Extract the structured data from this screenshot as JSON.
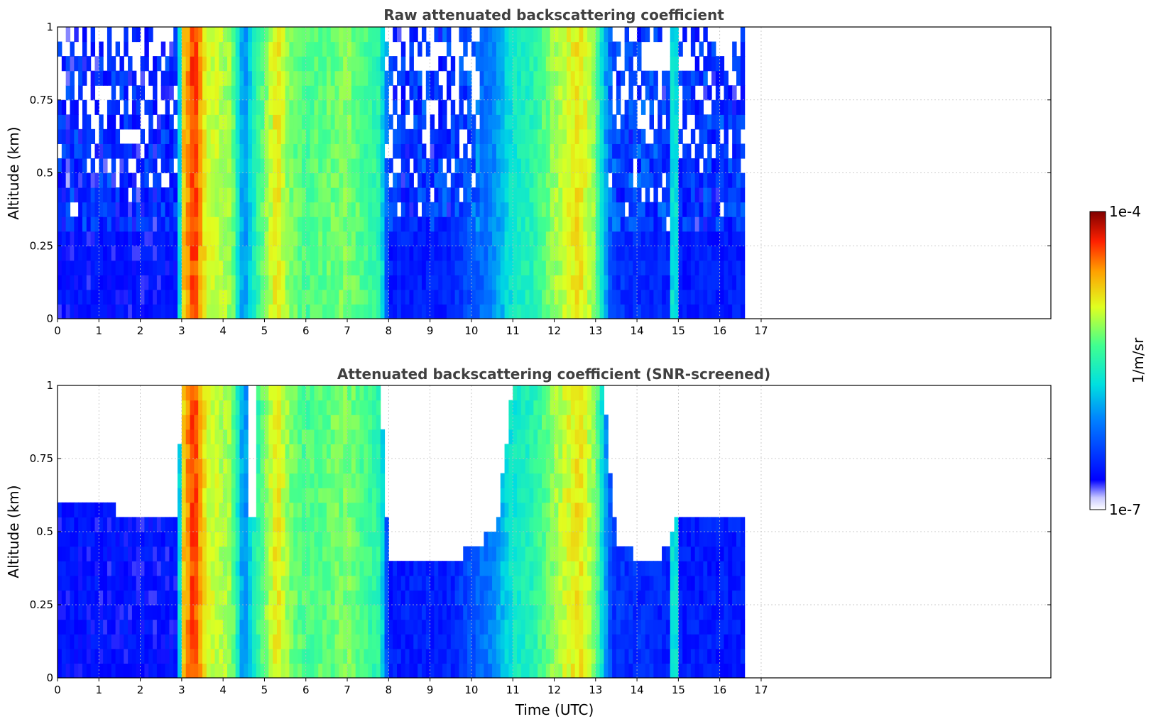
{
  "chart_data": [
    {
      "type": "heatmap",
      "title": "Raw attenuated backscattering coefficient",
      "xlabel": "",
      "ylabel": "Altitude (km)",
      "xlim": [
        0,
        24
      ],
      "ylim": [
        0,
        1
      ],
      "x_ticks": [
        "0",
        "1",
        "2",
        "3",
        "4",
        "5",
        "6",
        "7",
        "8",
        "9",
        "10",
        "11",
        "12",
        "13",
        "14",
        "15",
        "16",
        "17"
      ],
      "y_ticks": [
        "0",
        "0.25",
        "0.5",
        "0.75",
        "1"
      ],
      "grid": true,
      "data_x_range": [
        0,
        16.6
      ],
      "screened": false,
      "time_profile": [
        {
          "t": 0,
          "v": 0.12
        },
        {
          "t": 2.9,
          "v": 0.12
        },
        {
          "t": 3.0,
          "v": 0.72
        },
        {
          "t": 3.3,
          "v": 0.9
        },
        {
          "t": 3.6,
          "v": 0.68
        },
        {
          "t": 4.2,
          "v": 0.62
        },
        {
          "t": 4.5,
          "v": 0.3
        },
        {
          "t": 4.8,
          "v": 0.5
        },
        {
          "t": 5.3,
          "v": 0.72
        },
        {
          "t": 5.6,
          "v": 0.6
        },
        {
          "t": 6.0,
          "v": 0.55
        },
        {
          "t": 7.0,
          "v": 0.6
        },
        {
          "t": 7.8,
          "v": 0.5
        },
        {
          "t": 8.0,
          "v": 0.14
        },
        {
          "t": 9.5,
          "v": 0.15
        },
        {
          "t": 10.5,
          "v": 0.3
        },
        {
          "t": 11.0,
          "v": 0.45
        },
        {
          "t": 11.5,
          "v": 0.5
        },
        {
          "t": 12.0,
          "v": 0.62
        },
        {
          "t": 12.6,
          "v": 0.72
        },
        {
          "t": 13.0,
          "v": 0.6
        },
        {
          "t": 13.4,
          "v": 0.18
        },
        {
          "t": 14.8,
          "v": 0.15
        },
        {
          "t": 14.9,
          "v": 0.7
        },
        {
          "t": 15.0,
          "v": 0.14
        },
        {
          "t": 16.6,
          "v": 0.14
        }
      ]
    },
    {
      "type": "heatmap",
      "title": "Attenuated backscattering coefficient (SNR-screened)",
      "xlabel": "Time (UTC)",
      "ylabel": "Altitude (km)",
      "xlim": [
        0,
        24
      ],
      "ylim": [
        0,
        1
      ],
      "x_ticks": [
        "0",
        "1",
        "2",
        "3",
        "4",
        "5",
        "6",
        "7",
        "8",
        "9",
        "10",
        "11",
        "12",
        "13",
        "14",
        "15",
        "16",
        "17"
      ],
      "y_ticks": [
        "0",
        "0.25",
        "0.5",
        "0.75",
        "1"
      ],
      "grid": true,
      "data_x_range": [
        0,
        16.6
      ],
      "screened": true,
      "screen_top_km": [
        {
          "t": 0,
          "h": 0.58
        },
        {
          "t": 2.9,
          "h": 0.57
        },
        {
          "t": 3.0,
          "h": 1.0
        },
        {
          "t": 4.6,
          "h": 1.0
        },
        {
          "t": 4.6,
          "h": 0.55
        },
        {
          "t": 4.8,
          "h": 0.55
        },
        {
          "t": 4.8,
          "h": 1.0
        },
        {
          "t": 7.8,
          "h": 1.0
        },
        {
          "t": 8.0,
          "h": 0.4
        },
        {
          "t": 9.5,
          "h": 0.38
        },
        {
          "t": 10.0,
          "h": 0.45
        },
        {
          "t": 10.6,
          "h": 0.5
        },
        {
          "t": 11.0,
          "h": 1.0
        },
        {
          "t": 13.2,
          "h": 1.0
        },
        {
          "t": 13.5,
          "h": 0.45
        },
        {
          "t": 14.5,
          "h": 0.38
        },
        {
          "t": 15.0,
          "h": 0.55
        },
        {
          "t": 16.6,
          "h": 0.55
        }
      ]
    }
  ],
  "colorbar": {
    "label": "1/m/sr",
    "max_label": "1e-4",
    "min_label": "1e-7",
    "colormap": "jet"
  },
  "colors": {
    "title": "#404040",
    "grid": "#bdbdbd",
    "axis": "#000000"
  }
}
